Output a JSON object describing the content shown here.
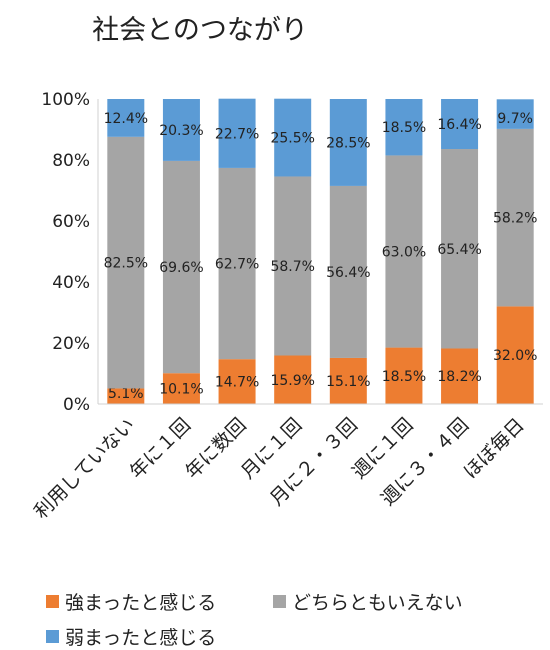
{
  "chart_data": {
    "type": "bar",
    "stacked": true,
    "title": "社会とのつながり",
    "categories": [
      "利用していない",
      "年に１回",
      "年に数回",
      "月に１回",
      "月に２・３回",
      "週に１回",
      "週に３・４回",
      "ほぼ毎日"
    ],
    "series": [
      {
        "name": "強まったと感じる",
        "color": "#ED7D31",
        "values": [
          5.1,
          10.1,
          14.7,
          15.9,
          15.1,
          18.5,
          18.2,
          32.0
        ],
        "labels": [
          "5.1%",
          "10.1%",
          "14.7%",
          "15.9%",
          "15.1%",
          "18.5%",
          "18.2%",
          "32.0%"
        ]
      },
      {
        "name": "どちらともいえない",
        "color": "#A5A5A5",
        "values": [
          82.5,
          69.6,
          62.7,
          58.7,
          56.4,
          63.0,
          65.4,
          58.2
        ],
        "labels": [
          "82.5%",
          "69.6%",
          "62.7%",
          "58.7%",
          "56.4%",
          "63.0%",
          "65.4%",
          "58.2%"
        ]
      },
      {
        "name": "弱まったと感じる",
        "color": "#5B9BD5",
        "values": [
          12.4,
          20.3,
          22.7,
          25.5,
          28.5,
          18.5,
          16.4,
          9.7
        ],
        "labels": [
          "12.4%",
          "20.3%",
          "22.7%",
          "25.5%",
          "28.5%",
          "18.5%",
          "16.4%",
          "9.7%"
        ]
      }
    ],
    "ylim": [
      0,
      100
    ],
    "yticks": [
      "0%",
      "20%",
      "40%",
      "60%",
      "80%",
      "100%"
    ],
    "grid": false,
    "legend": "bottom"
  }
}
